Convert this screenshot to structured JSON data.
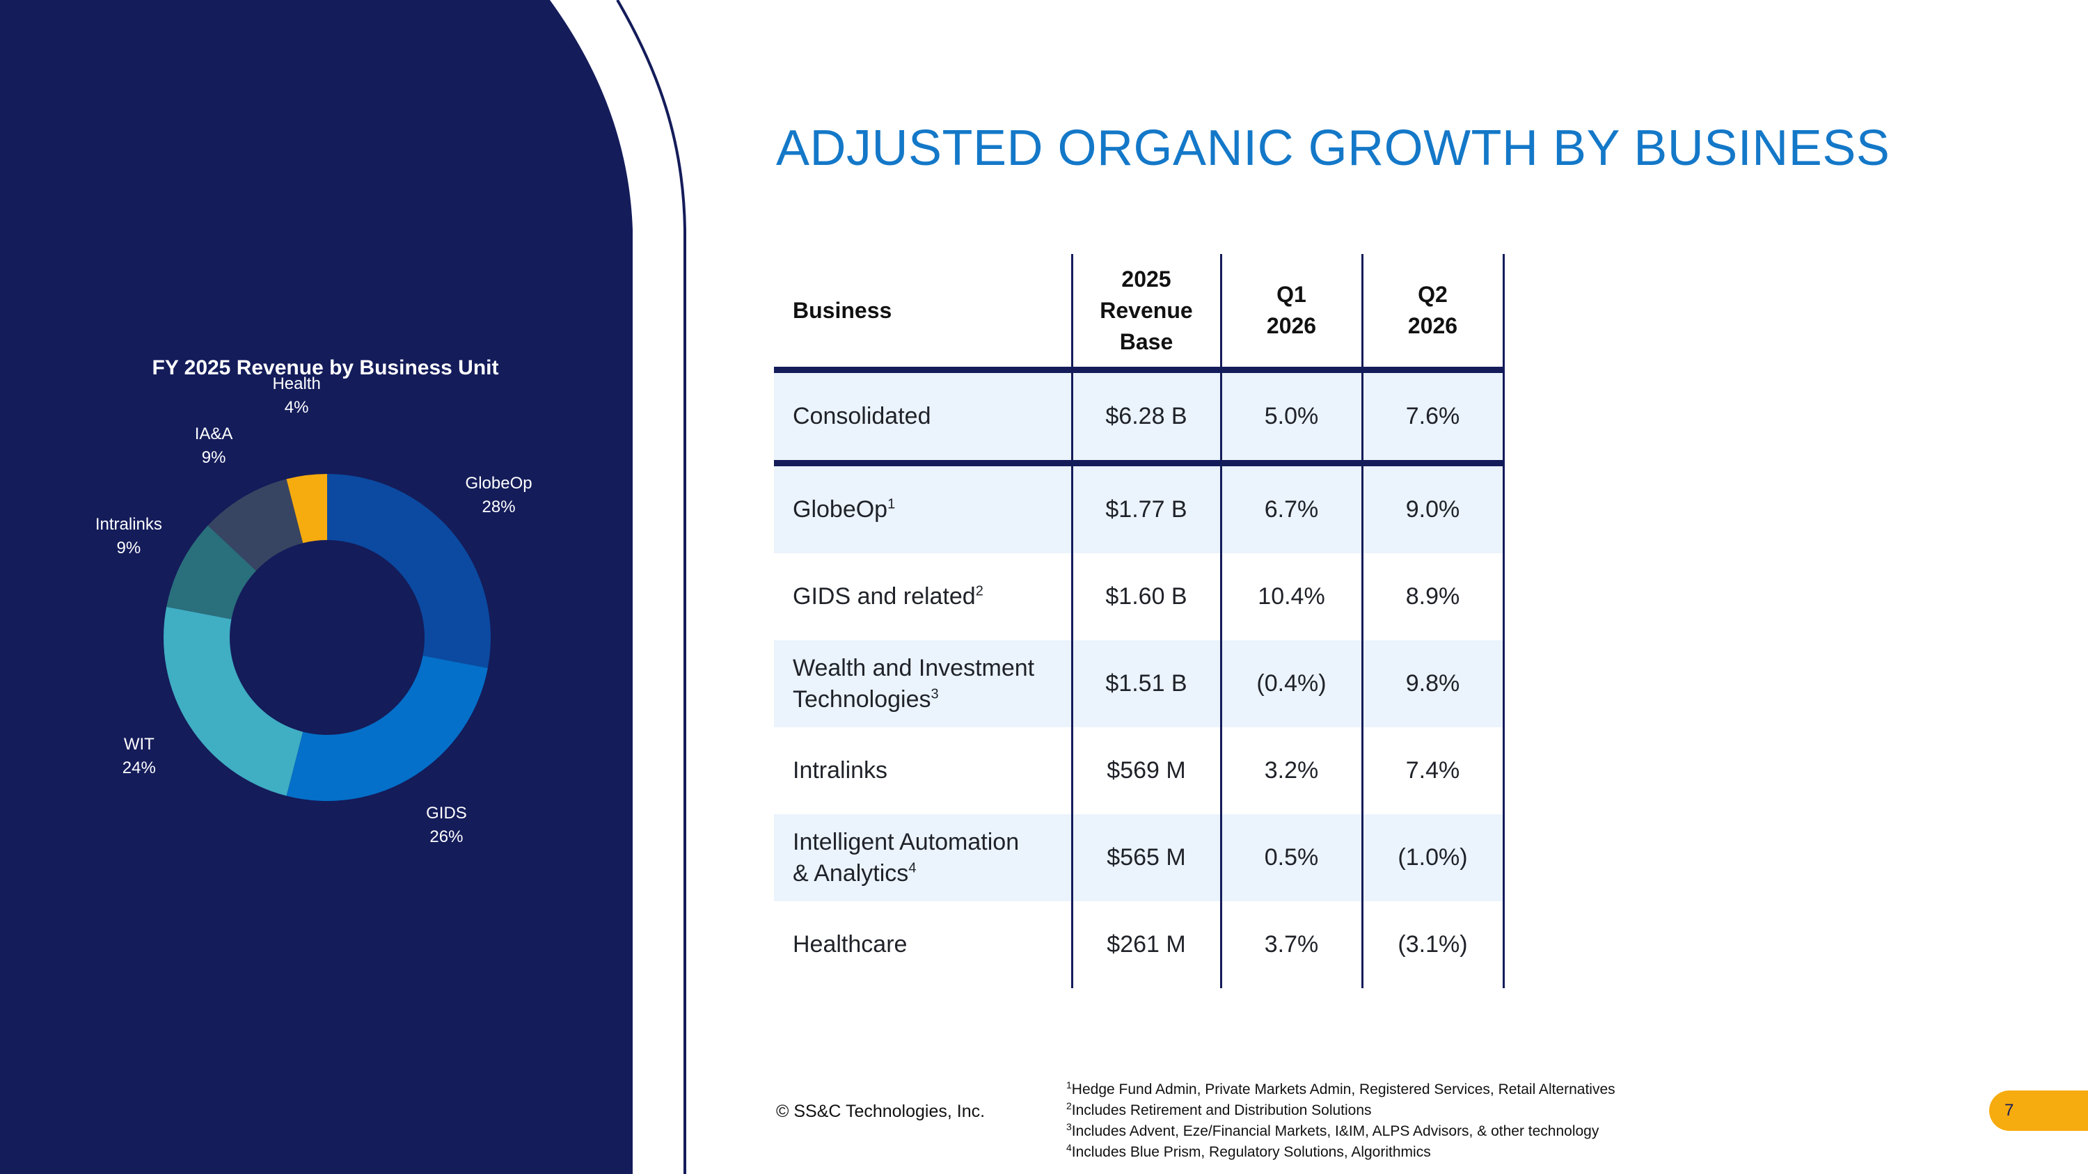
{
  "slide": {
    "title": "ADJUSTED ORGANIC GROWTH BY BUSINESS",
    "copyright": "© SS&C Technologies, Inc.",
    "page_number": "7"
  },
  "chart_data": {
    "type": "pie",
    "title": "FY 2025 Revenue by Business Unit",
    "categories": [
      "GlobeOp",
      "GIDS",
      "WIT",
      "Intralinks",
      "IA&A",
      "Health"
    ],
    "values": [
      28,
      26,
      24,
      9,
      9,
      4
    ],
    "labels": [
      "28%",
      "26%",
      "24%",
      "9%",
      "9%",
      "4%"
    ],
    "colors": [
      "#0b4aa0",
      "#0470c9",
      "#40aec3",
      "#2a6f7c",
      "#384562",
      "#f6ab0e"
    ],
    "donut": true,
    "background": "#141c5a"
  },
  "table": {
    "headers": {
      "business": "Business",
      "revenue": [
        "2025",
        "Revenue",
        "Base"
      ],
      "q1": [
        "Q1",
        "2026"
      ],
      "q2": [
        "Q2",
        "2026"
      ]
    },
    "rows": [
      {
        "name": "Consolidated",
        "sup": "",
        "name2": "",
        "revenue": "$6.28 B",
        "q1": "5.0%",
        "q2": "7.6%"
      },
      {
        "name": "GlobeOp",
        "sup": "1",
        "name2": "",
        "revenue": "$1.77 B",
        "q1": "6.7%",
        "q2": "9.0%"
      },
      {
        "name": "GIDS and related",
        "sup": "2",
        "name2": "",
        "revenue": "$1.60 B",
        "q1": "10.4%",
        "q2": "8.9%"
      },
      {
        "name": "Wealth and Investment",
        "sup": "3",
        "name2": "Technologies",
        "revenue": "$1.51 B",
        "q1": "(0.4%)",
        "q2": "9.8%"
      },
      {
        "name": "Intralinks",
        "sup": "",
        "name2": "",
        "revenue": "$569 M",
        "q1": "3.2%",
        "q2": "7.4%"
      },
      {
        "name": "Intelligent Automation",
        "sup": "4",
        "name2": "& Analytics",
        "revenue": "$565 M",
        "q1": "0.5%",
        "q2": "(1.0%)"
      },
      {
        "name": "Healthcare",
        "sup": "",
        "name2": "",
        "revenue": "$261 M",
        "q1": "3.7%",
        "q2": "(3.1%)"
      }
    ]
  },
  "footnotes": [
    {
      "num": "1",
      "text": "Hedge Fund Admin, Private Markets Admin, Registered Services, Retail Alternatives"
    },
    {
      "num": "2",
      "text": "Includes Retirement and Distribution Solutions"
    },
    {
      "num": "3",
      "text": "Includes Advent, Eze/Financial Markets, I&IM, ALPS Advisors, & other technology"
    },
    {
      "num": "4",
      "text": "Includes Blue Prism, Regulatory Solutions, Algorithmics"
    }
  ]
}
